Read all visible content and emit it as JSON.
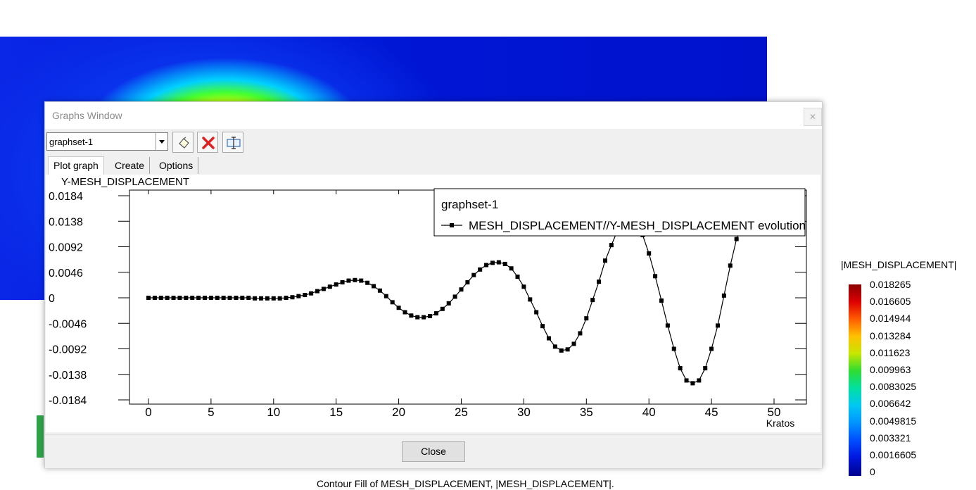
{
  "window": {
    "title": "Graphs Window",
    "graphset_value": "graphset-1",
    "tabs": [
      "Plot graph",
      "Create",
      "Options"
    ],
    "close_label": "Close",
    "close_x": "✕"
  },
  "contour": {
    "legend_title": "|MESH_DISPLACEMENT|",
    "legend_values": [
      "0.018265",
      "0.016605",
      "0.014944",
      "0.013284",
      "0.011623",
      "0.009963",
      "0.0083025",
      "0.006642",
      "0.0049815",
      "0.003321",
      "0.0016605",
      "0"
    ],
    "caption": "Contour Fill of MESH_DISPLACEMENT, |MESH_DISPLACEMENT|."
  },
  "chart_data": {
    "type": "line",
    "ylabel": "Y-MESH_DISPLACEMENT",
    "xlabel": "Kratos",
    "legend_title": "graphset-1",
    "legend_placement": "top-right",
    "grid": false,
    "xlim": [
      0,
      50
    ],
    "ylim": [
      -0.0184,
      0.0184
    ],
    "x_ticks": [
      "0",
      "5",
      "10",
      "15",
      "20",
      "25",
      "30",
      "35",
      "40",
      "45",
      "50"
    ],
    "y_ticks": [
      "0.0184",
      "0.0138",
      "0.0092",
      "0.0046",
      "0",
      "-0.0046",
      "-0.0092",
      "-0.0138",
      "-0.0184"
    ],
    "series": [
      {
        "name": "MESH_DISPLACEMENT//Y-MESH_DISPLACEMENT  evolution",
        "color": "#000000",
        "marker": "square",
        "x": [
          0,
          0.5,
          1,
          1.5,
          2,
          2.5,
          3,
          3.5,
          4,
          4.5,
          5,
          5.5,
          6,
          6.5,
          7,
          7.5,
          8,
          8.5,
          9,
          9.5,
          10,
          10.5,
          11,
          11.5,
          12,
          12.5,
          13,
          13.5,
          14,
          14.5,
          15,
          15.5,
          16,
          16.5,
          17,
          17.5,
          18,
          18.5,
          19,
          19.5,
          20,
          20.5,
          21,
          21.5,
          22,
          22.5,
          23,
          23.5,
          24,
          24.5,
          25,
          25.5,
          26,
          26.5,
          27,
          27.5,
          28,
          28.5,
          29,
          29.5,
          30,
          30.5,
          31,
          31.5,
          32,
          32.5,
          33,
          33.5,
          34,
          34.5,
          35,
          35.5,
          36,
          36.5,
          37,
          37.5,
          38,
          38.5,
          39,
          39.5,
          40,
          40.5,
          41,
          41.5,
          42,
          42.5,
          43,
          43.5,
          44,
          44.5,
          45,
          45.5,
          46,
          46.5,
          47,
          47.5,
          48,
          48.5,
          49,
          49.5,
          50
        ],
        "y": [
          0,
          0,
          0,
          0,
          0,
          0,
          0,
          0,
          0,
          0,
          0,
          0,
          0,
          0,
          0,
          0,
          0,
          -0.0001,
          -0.0001,
          -0.0001,
          -0.0001,
          -0.0001,
          0,
          0.0001,
          0.0003,
          0.0005,
          0.0008,
          0.0012,
          0.0016,
          0.002,
          0.0024,
          0.0028,
          0.0031,
          0.0032,
          0.0031,
          0.0027,
          0.0021,
          0.0013,
          0.0003,
          -0.0008,
          -0.0018,
          -0.0026,
          -0.0032,
          -0.0035,
          -0.0035,
          -0.0033,
          -0.0028,
          -0.002,
          -0.001,
          0.0002,
          0.0015,
          0.0028,
          0.0041,
          0.0051,
          0.0059,
          0.0063,
          0.0064,
          0.0061,
          0.0053,
          0.0038,
          0.002,
          -0.0003,
          -0.0026,
          -0.0051,
          -0.0073,
          -0.0088,
          -0.0095,
          -0.0093,
          -0.0083,
          -0.0064,
          -0.0037,
          -0.0004,
          0.0029,
          0.0067,
          0.0095,
          0.0122,
          0.0136,
          0.0139,
          0.0131,
          0.0113,
          0.008,
          0.0039,
          -0.0005,
          -0.005,
          -0.0092,
          -0.0127,
          -0.0149,
          -0.0154,
          -0.0149,
          -0.0127,
          -0.0092,
          -0.005,
          0.0004,
          0.0058,
          0.0106,
          0.0145,
          0.0162,
          0.0175,
          0.0182,
          0.0184,
          0.0183
        ],
        "x_dense": true
      }
    ]
  }
}
